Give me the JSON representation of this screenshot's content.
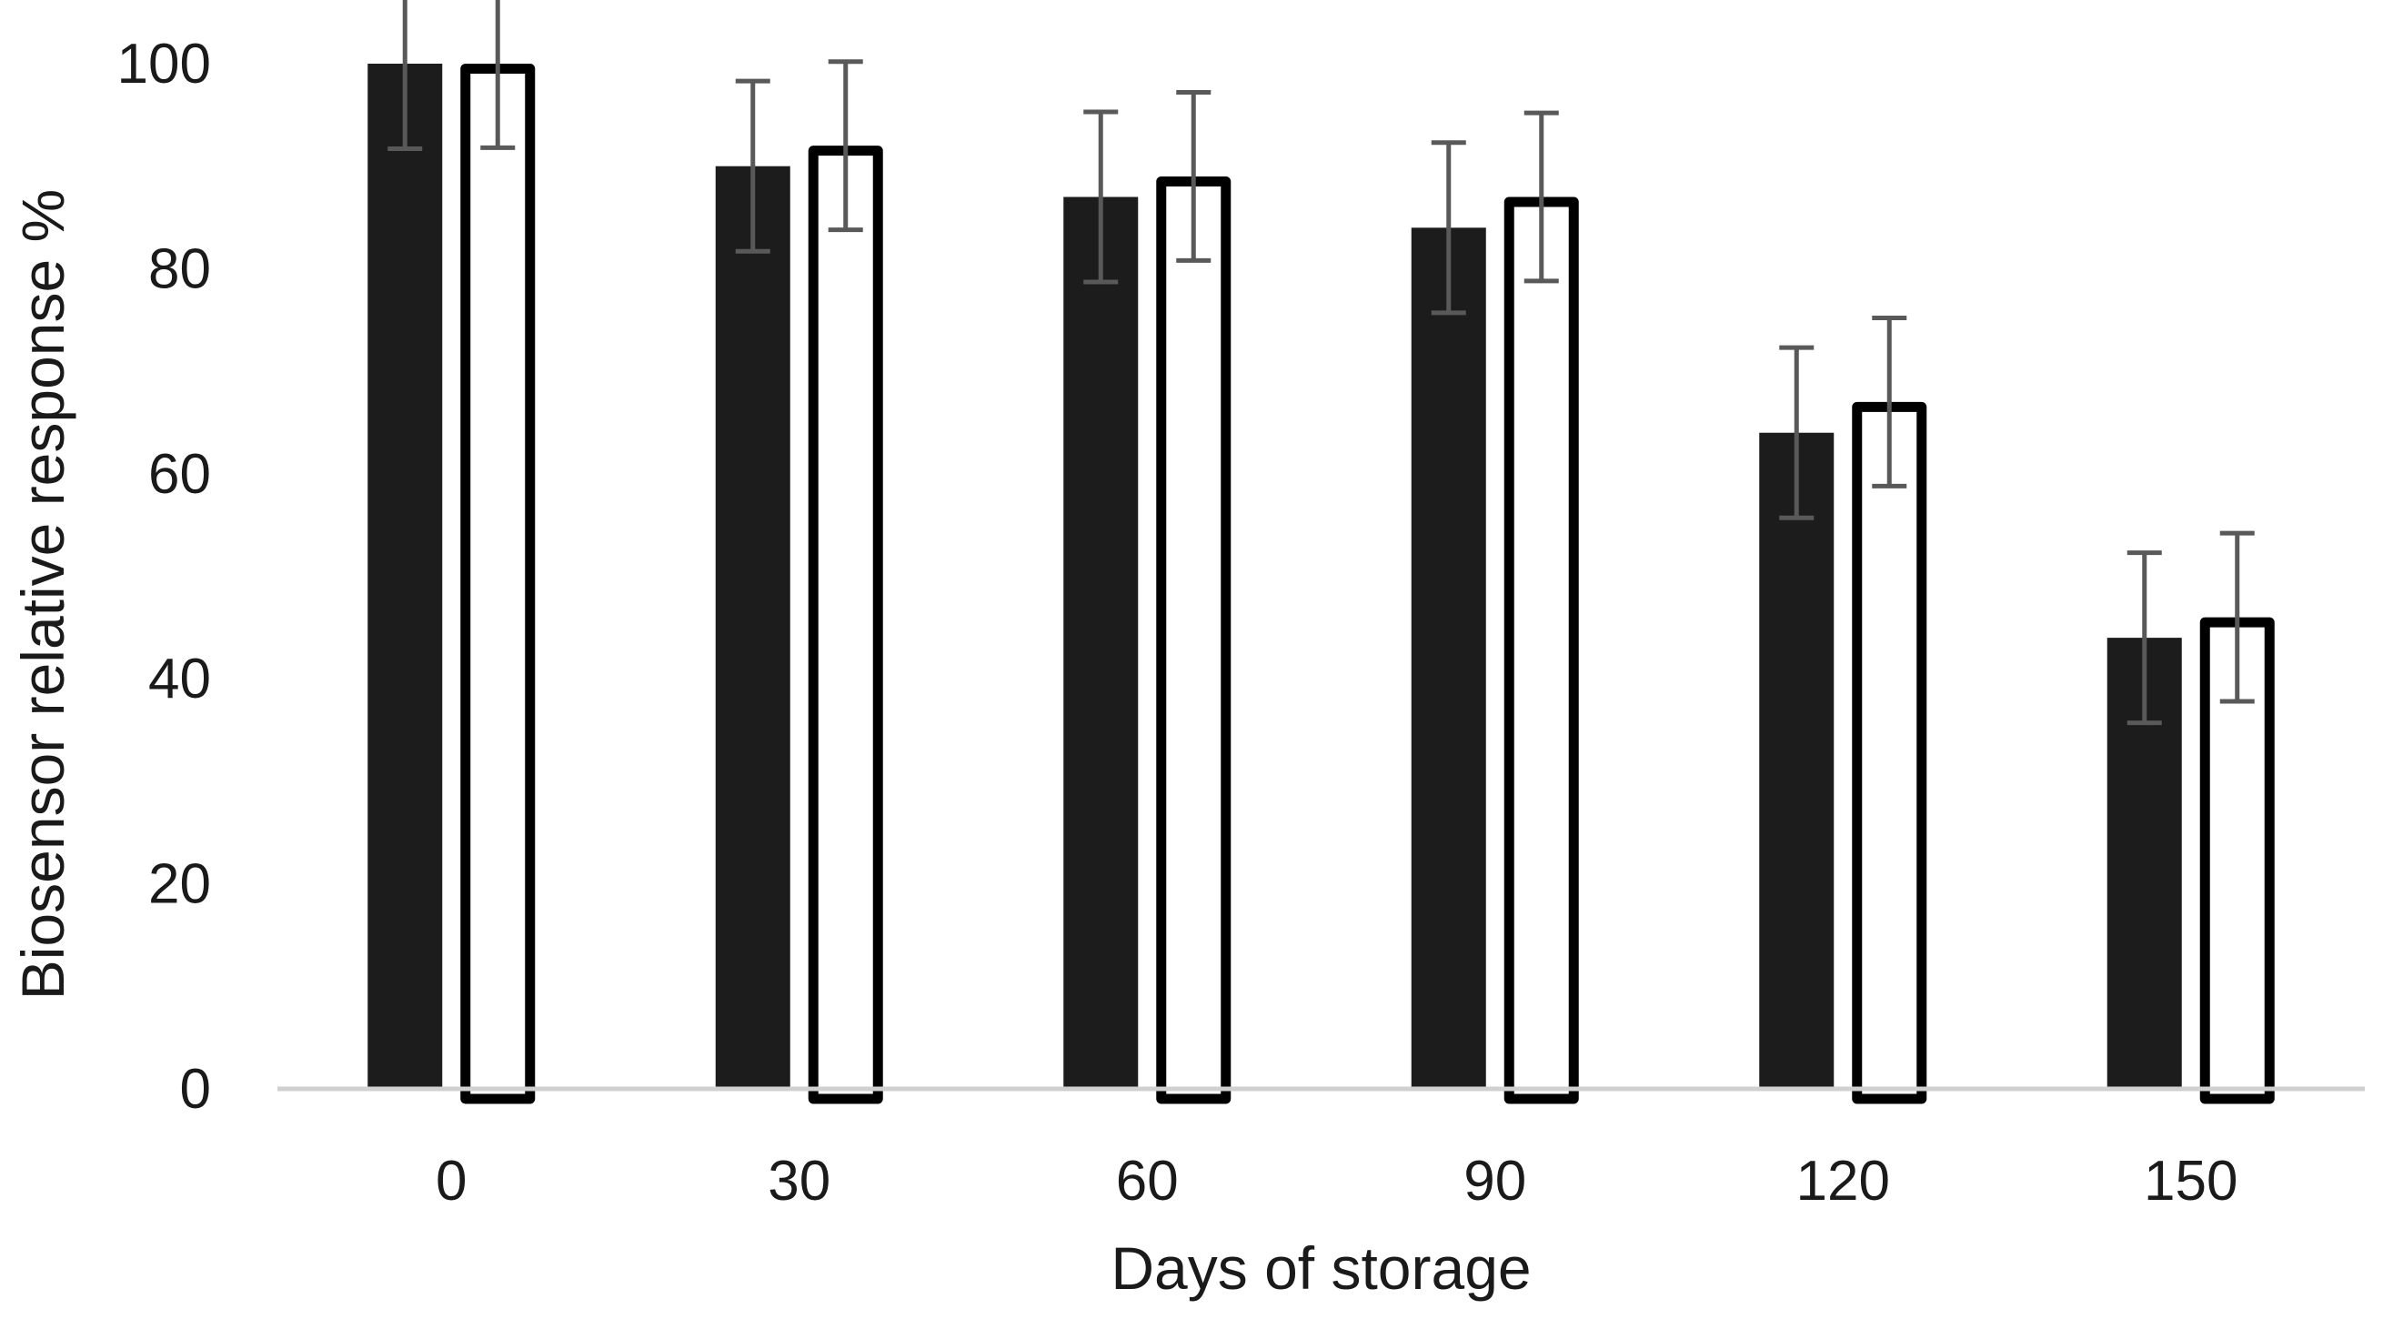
{
  "chart_data": {
    "type": "bar",
    "title": "",
    "xlabel": "Days of storage",
    "ylabel": "Biosensor relative response %",
    "categories": [
      "0",
      "30",
      "60",
      "90",
      "120",
      "150"
    ],
    "ylim": [
      0,
      100
    ],
    "yticks": [
      0,
      20,
      40,
      60,
      80,
      100
    ],
    "grid": false,
    "legend": "none",
    "series": [
      {
        "values": [
          100,
          90,
          87,
          84,
          64,
          44
        ],
        "error": [
          8.3,
          8.3,
          8.3,
          8.3,
          8.3,
          8.3
        ],
        "fill": "#1c1c1c",
        "stroke": "#1c1c1c"
      },
      {
        "values": [
          100,
          92,
          89,
          87,
          67,
          46
        ],
        "error": [
          8.2,
          8.2,
          8.2,
          8.2,
          8.2,
          8.2
        ],
        "fill": "#ffffff",
        "stroke": "#000000"
      }
    ],
    "colors": {
      "axis": "#d0d0d0",
      "error_bar": "#595959"
    }
  }
}
